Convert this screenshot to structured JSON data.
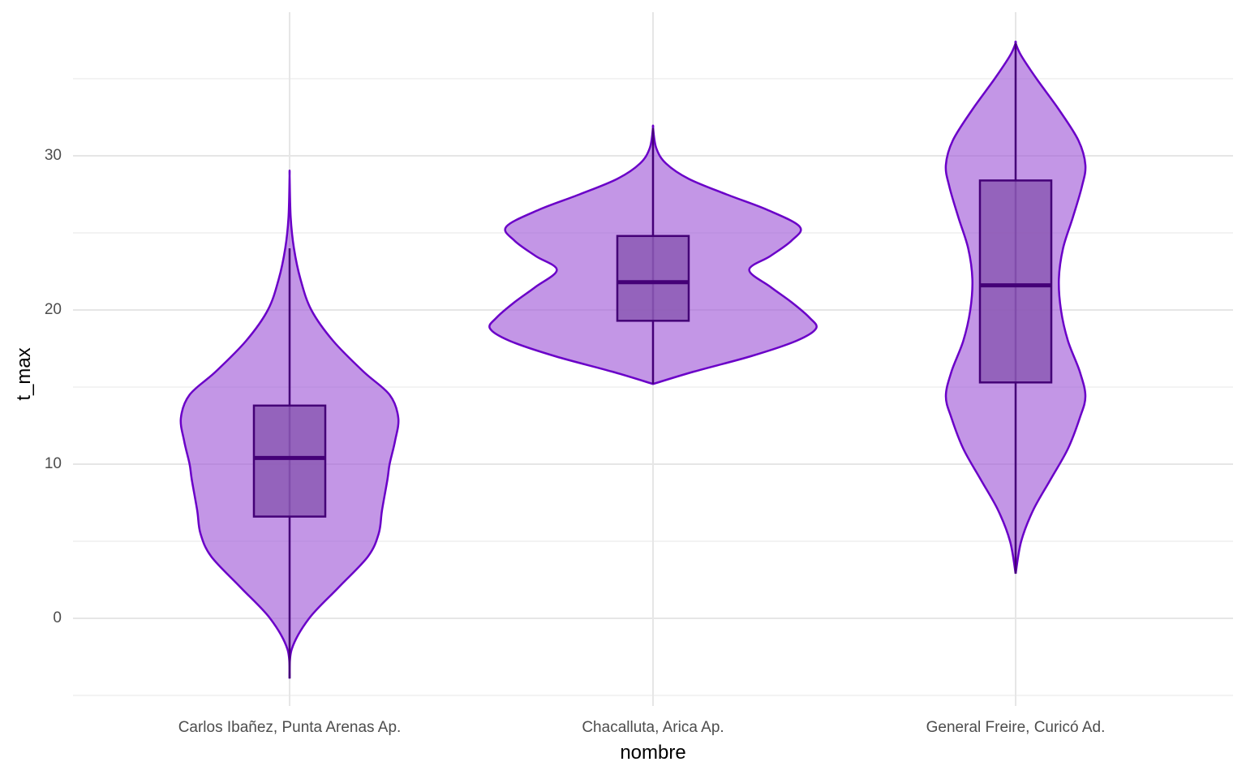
{
  "chart_data": {
    "type": "violin",
    "title": "",
    "xlabel": "nombre",
    "ylabel": "t_max",
    "categories": [
      "Carlos Ibañez, Punta Arenas Ap.",
      "Chacalluta, Arica Ap.",
      "General Freire, Curicó Ad."
    ],
    "y_ticks": [
      0,
      10,
      20,
      30
    ],
    "ylim": [
      -5.3,
      39.5
    ],
    "grid": true,
    "legend": "none",
    "colors": {
      "violin_fill": "#a35ed9",
      "violin_fill_opacity": 0.65,
      "violin_outline": "#6a00c8",
      "box_fill": "#8c5ab4",
      "box_outline": "#440077",
      "grid": "#e6e6e6"
    },
    "series": [
      {
        "name": "Carlos Ibañez, Punta Arenas Ap.",
        "min": -3.9,
        "q1": 6.6,
        "median": 10.4,
        "q3": 13.8,
        "max": 28.7,
        "whisker_low": -3.9,
        "whisker_high": 24.0,
        "density": [
          [
            -3.9,
            0.0
          ],
          [
            -2,
            0.02
          ],
          [
            0,
            0.18
          ],
          [
            2,
            0.45
          ],
          [
            4,
            0.72
          ],
          [
            5.5,
            0.82
          ],
          [
            7,
            0.85
          ],
          [
            9,
            0.9
          ],
          [
            10,
            0.92
          ],
          [
            11.5,
            0.97
          ],
          [
            13,
            1.0
          ],
          [
            14.5,
            0.92
          ],
          [
            16,
            0.68
          ],
          [
            18,
            0.4
          ],
          [
            20,
            0.2
          ],
          [
            22,
            0.1
          ],
          [
            24,
            0.04
          ],
          [
            26,
            0.01
          ],
          [
            28.7,
            0.0
          ]
        ]
      },
      {
        "name": "Chacalluta, Arica Ap.",
        "min": 15.2,
        "q1": 19.3,
        "median": 21.8,
        "q3": 24.8,
        "max": 31.8,
        "whisker_low": 15.2,
        "whisker_high": 31.8,
        "density": [
          [
            15.2,
            0.0
          ],
          [
            16,
            0.25
          ],
          [
            17,
            0.6
          ],
          [
            18,
            0.88
          ],
          [
            18.8,
            1.0
          ],
          [
            19.5,
            0.96
          ],
          [
            20.5,
            0.85
          ],
          [
            21.5,
            0.72
          ],
          [
            22.6,
            0.59
          ],
          [
            23.5,
            0.72
          ],
          [
            24.5,
            0.85
          ],
          [
            25.4,
            0.9
          ],
          [
            26.5,
            0.7
          ],
          [
            27.5,
            0.45
          ],
          [
            28.5,
            0.22
          ],
          [
            29.5,
            0.08
          ],
          [
            30.5,
            0.02
          ],
          [
            31.8,
            0.0
          ]
        ]
      },
      {
        "name": "General Freire, Curicó Ad.",
        "min": 2.9,
        "q1": 15.3,
        "median": 21.6,
        "q3": 28.4,
        "max": 37.3,
        "whisker_low": 2.9,
        "whisker_high": 37.3,
        "density": [
          [
            2.9,
            0.0
          ],
          [
            5,
            0.08
          ],
          [
            7,
            0.25
          ],
          [
            9,
            0.5
          ],
          [
            11,
            0.75
          ],
          [
            13,
            0.92
          ],
          [
            14.4,
            1.0
          ],
          [
            16,
            0.92
          ],
          [
            18,
            0.75
          ],
          [
            20,
            0.65
          ],
          [
            22,
            0.62
          ],
          [
            24,
            0.68
          ],
          [
            26,
            0.82
          ],
          [
            28,
            0.95
          ],
          [
            29.4,
            1.0
          ],
          [
            31,
            0.9
          ],
          [
            33,
            0.62
          ],
          [
            35,
            0.3
          ],
          [
            36.5,
            0.08
          ],
          [
            37.3,
            0.0
          ]
        ]
      }
    ]
  }
}
